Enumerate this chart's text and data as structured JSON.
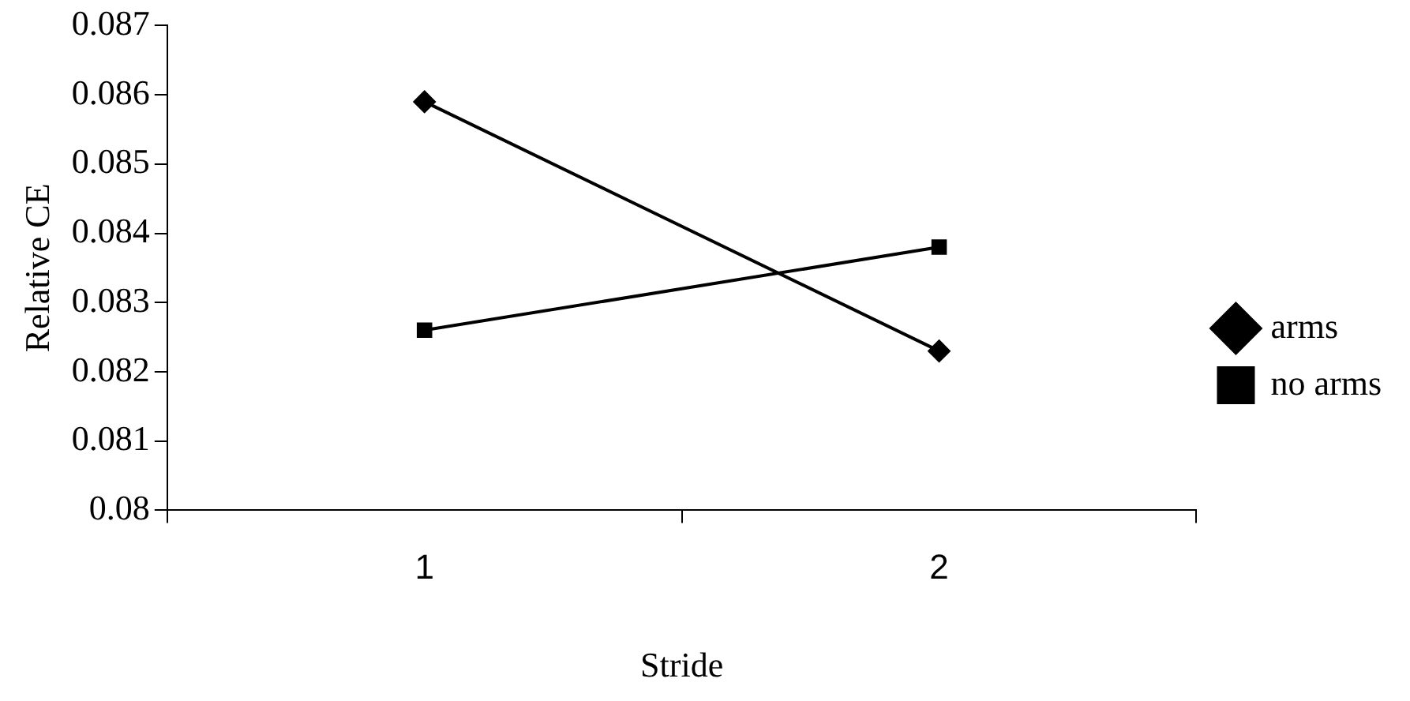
{
  "chart_data": {
    "type": "line",
    "xlabel": "Stride",
    "ylabel": "Relative CE",
    "categories": [
      "1",
      "2"
    ],
    "series": [
      {
        "name": "arms",
        "color": "#000000",
        "values": [
          0.0859,
          0.0823
        ],
        "marker": "diamond"
      },
      {
        "name": "no arms",
        "color": "#000000",
        "values": [
          0.0826,
          0.0838
        ],
        "marker": "square"
      }
    ],
    "ylim": [
      0.08,
      0.087
    ],
    "yticks": [
      0.08,
      0.081,
      0.082,
      0.083,
      0.084,
      0.085,
      0.086,
      0.087
    ],
    "grid": false,
    "legend": "right",
    "line_style": "solid"
  }
}
